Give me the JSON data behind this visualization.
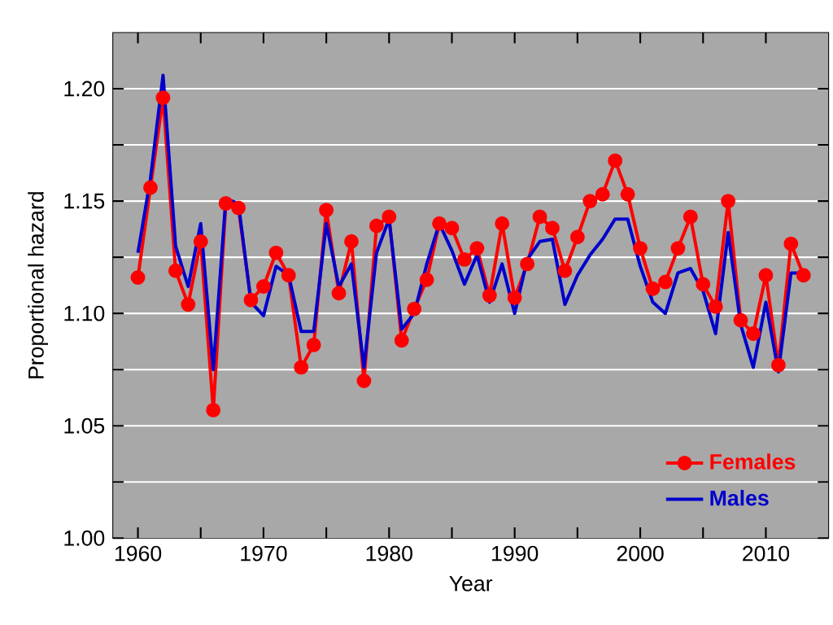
{
  "chart_data": {
    "type": "line",
    "xlabel": "Year",
    "ylabel": "Proportional hazard",
    "x": [
      1960,
      1961,
      1962,
      1963,
      1964,
      1965,
      1966,
      1967,
      1968,
      1969,
      1970,
      1971,
      1972,
      1973,
      1974,
      1975,
      1976,
      1977,
      1978,
      1979,
      1980,
      1981,
      1982,
      1983,
      1984,
      1985,
      1986,
      1987,
      1988,
      1989,
      1990,
      1991,
      1992,
      1993,
      1994,
      1995,
      1996,
      1997,
      1998,
      1999,
      2000,
      2001,
      2002,
      2003,
      2004,
      2005,
      2006,
      2007,
      2008,
      2009,
      2010,
      2011,
      2012,
      2013
    ],
    "series": [
      {
        "name": "Females",
        "color": "#ff0000",
        "marker": "circle",
        "values": [
          1.116,
          1.156,
          1.196,
          1.119,
          1.104,
          1.132,
          1.057,
          1.149,
          1.147,
          1.106,
          1.112,
          1.127,
          1.117,
          1.076,
          1.086,
          1.146,
          1.109,
          1.132,
          1.07,
          1.139,
          1.143,
          1.088,
          1.102,
          1.115,
          1.14,
          1.138,
          1.124,
          1.129,
          1.108,
          1.14,
          1.107,
          1.122,
          1.143,
          1.138,
          1.119,
          1.134,
          1.15,
          1.153,
          1.168,
          1.153,
          1.129,
          1.111,
          1.114,
          1.129,
          1.143,
          1.113,
          1.103,
          1.15,
          1.097,
          1.091,
          1.117,
          1.077,
          1.131,
          1.117
        ]
      },
      {
        "name": "Males",
        "color": "#0000cc",
        "marker": "none",
        "values": [
          1.127,
          1.16,
          1.206,
          1.13,
          1.112,
          1.14,
          1.075,
          1.151,
          1.149,
          1.105,
          1.099,
          1.121,
          1.117,
          1.092,
          1.092,
          1.14,
          1.112,
          1.122,
          1.076,
          1.127,
          1.142,
          1.093,
          1.1,
          1.122,
          1.14,
          1.128,
          1.113,
          1.126,
          1.105,
          1.122,
          1.1,
          1.124,
          1.132,
          1.133,
          1.104,
          1.117,
          1.126,
          1.133,
          1.142,
          1.142,
          1.121,
          1.105,
          1.1,
          1.118,
          1.12,
          1.11,
          1.091,
          1.136,
          1.095,
          1.076,
          1.105,
          1.074,
          1.118,
          1.118
        ]
      }
    ],
    "xlim": [
      1958,
      2015
    ],
    "ylim": [
      1.0,
      1.225
    ],
    "xticks": [
      1960,
      {
        "value": 1965,
        "label": null
      },
      1970,
      {
        "value": 1975,
        "label": null
      },
      1980,
      {
        "value": 1985,
        "label": null
      },
      1990,
      {
        "value": 1995,
        "label": null
      },
      2000,
      {
        "value": 2005,
        "label": null
      },
      2010
    ],
    "yticks": [
      {
        "value": 1.0,
        "label": "1.00"
      },
      {
        "value": 1.025,
        "label": null
      },
      1.05,
      {
        "value": 1.075,
        "label": null
      },
      {
        "value": 1.1,
        "label": "1.10"
      },
      {
        "value": 1.125,
        "label": null
      },
      1.15,
      {
        "value": 1.175,
        "label": null
      },
      {
        "value": 1.2,
        "label": "1.20"
      }
    ],
    "grid": "y",
    "legend": "bottom right",
    "line_style": "solid"
  }
}
